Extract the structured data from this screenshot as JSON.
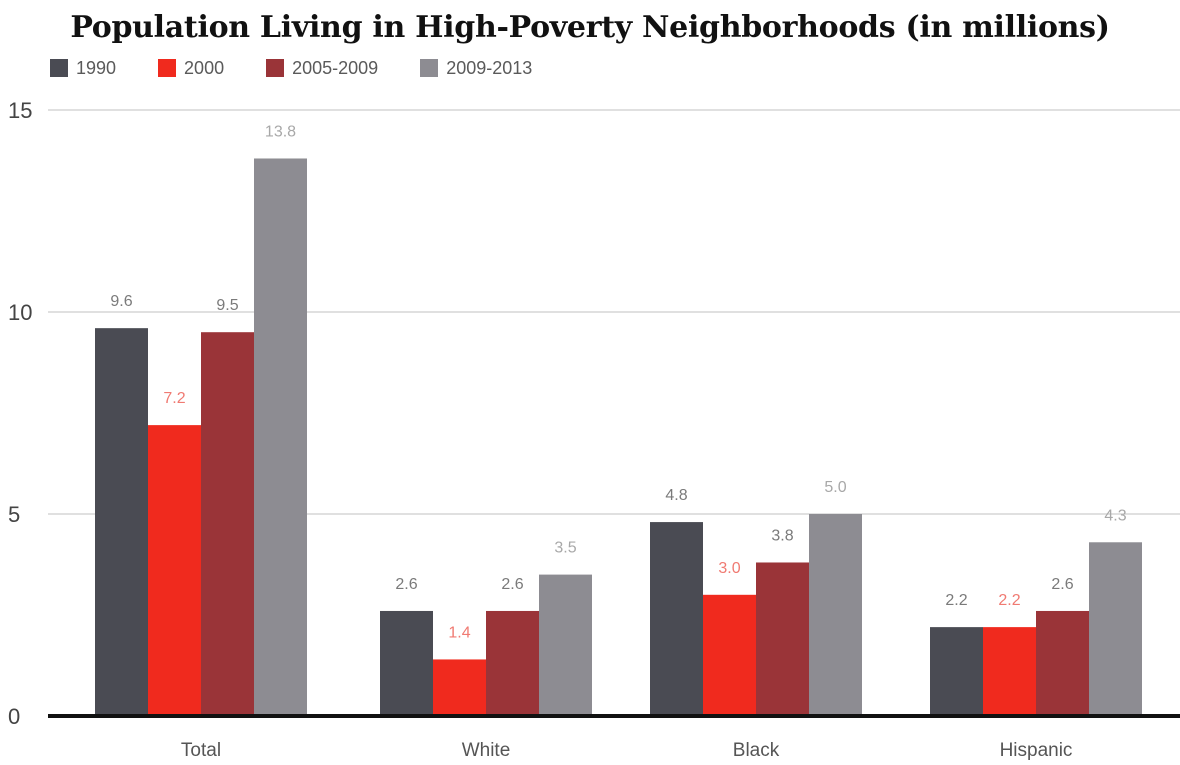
{
  "chart_data": {
    "type": "bar",
    "title": "Population Living in High-Poverty Neighborhoods (in millions)",
    "xlabel": "",
    "ylabel": "",
    "ylim": [
      0,
      15
    ],
    "yticks": [
      "0",
      "5",
      "10",
      "15"
    ],
    "grid": true,
    "legend_position": "top-left",
    "categories": [
      "Total",
      "White",
      "Black",
      "Hispanic"
    ],
    "series": [
      {
        "name": "1990",
        "color": "#4a4b53",
        "values": [
          9.6,
          2.6,
          4.8,
          2.2
        ],
        "labels": [
          "9.6",
          "2.6",
          "4.8",
          "2.2"
        ],
        "label_color": "#7a7a7a"
      },
      {
        "name": "2000",
        "color": "#f02a1e",
        "values": [
          7.2,
          1.4,
          3.0,
          2.2
        ],
        "labels": [
          "7.2",
          "1.4",
          "3.0",
          "2.2"
        ],
        "label_color": "#f07a72"
      },
      {
        "name": "2005-2009",
        "color": "#9a3438",
        "values": [
          9.5,
          2.6,
          3.8,
          2.6
        ],
        "labels": [
          "9.5",
          "2.6",
          "3.8",
          "2.6"
        ],
        "label_color": "#7a7a7a"
      },
      {
        "name": "2009-2013",
        "color": "#8d8c92",
        "values": [
          13.8,
          3.5,
          5.0,
          4.3
        ],
        "labels": [
          "13.8",
          "3.5",
          "5.0",
          "4.3"
        ],
        "label_color": "#a8a8a8"
      }
    ]
  }
}
